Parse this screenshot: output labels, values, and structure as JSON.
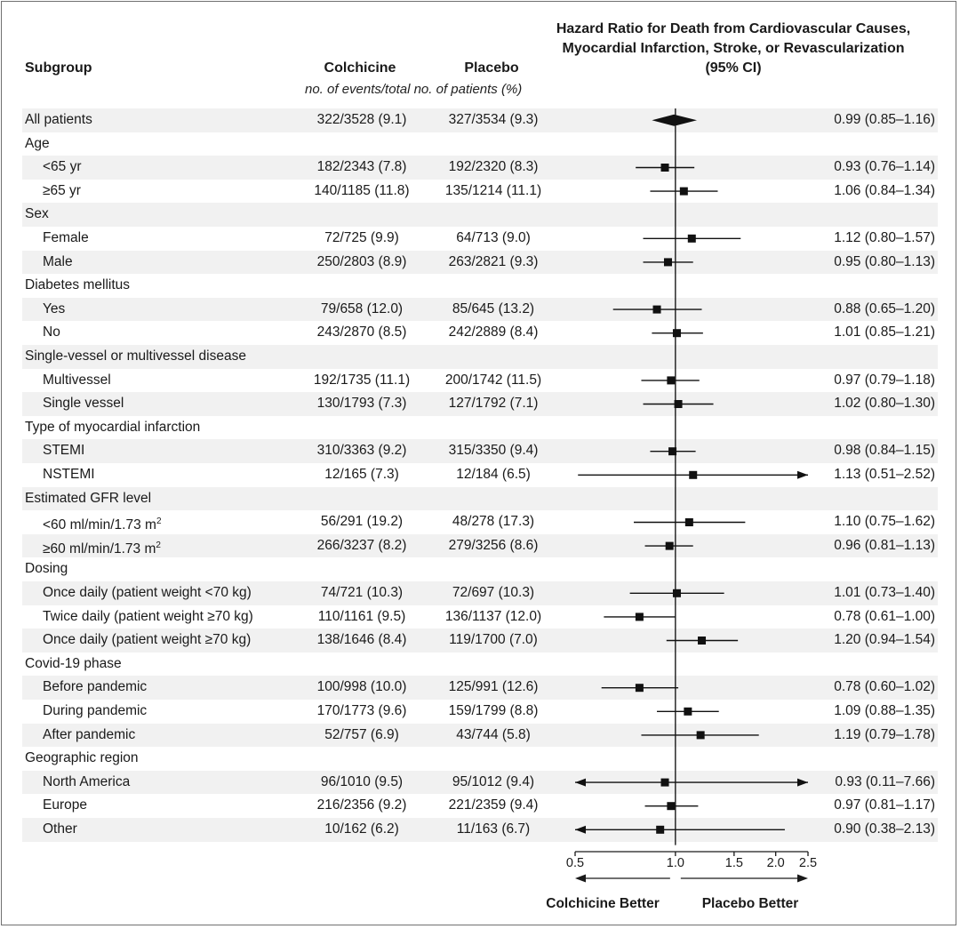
{
  "header": {
    "subgroup": "Subgroup",
    "colchicine": "Colchicine",
    "placebo": "Placebo",
    "units": "no. of events/total no. of patients (%)",
    "plot_title_lines": [
      "Hazard Ratio for Death from Cardiovascular Causes,",
      "Myocardial Infarction, Stroke, or Revascularization",
      "(95% CI)"
    ]
  },
  "chart_data": {
    "type": "forest",
    "x_scale": "log",
    "xlim": [
      0.5,
      2.5
    ],
    "reference_line": 1.0,
    "x_ticks": [
      0.5,
      1.0,
      1.5,
      2.0,
      2.5
    ],
    "x_tick_labels": [
      "0.5",
      "1.0",
      "1.5",
      "2.0",
      "2.5"
    ],
    "left_label": "Colchicine Better",
    "right_label": "Placebo Better",
    "rows": [
      {
        "label": "All patients",
        "kind": "overall",
        "colchicine": "322/3528 (9.1)",
        "placebo": "327/3534 (9.3)",
        "hr_text": "0.99 (0.85–1.16)",
        "hr": 0.99,
        "lo": 0.85,
        "hi": 1.16
      },
      {
        "label": "Age",
        "kind": "group"
      },
      {
        "label": "<65 yr",
        "kind": "item",
        "colchicine": "182/2343 (7.8)",
        "placebo": "192/2320 (8.3)",
        "hr_text": "0.93 (0.76–1.14)",
        "hr": 0.93,
        "lo": 0.76,
        "hi": 1.14
      },
      {
        "label": "≥65 yr",
        "kind": "item",
        "colchicine": "140/1185 (11.8)",
        "placebo": "135/1214 (11.1)",
        "hr_text": "1.06 (0.84–1.34)",
        "hr": 1.06,
        "lo": 0.84,
        "hi": 1.34
      },
      {
        "label": "Sex",
        "kind": "group"
      },
      {
        "label": "Female",
        "kind": "item",
        "colchicine": "72/725 (9.9)",
        "placebo": "64/713 (9.0)",
        "hr_text": "1.12 (0.80–1.57)",
        "hr": 1.12,
        "lo": 0.8,
        "hi": 1.57
      },
      {
        "label": "Male",
        "kind": "item",
        "colchicine": "250/2803 (8.9)",
        "placebo": "263/2821 (9.3)",
        "hr_text": "0.95 (0.80–1.13)",
        "hr": 0.95,
        "lo": 0.8,
        "hi": 1.13
      },
      {
        "label": "Diabetes mellitus",
        "kind": "group"
      },
      {
        "label": "Yes",
        "kind": "item",
        "colchicine": "79/658 (12.0)",
        "placebo": "85/645 (13.2)",
        "hr_text": "0.88 (0.65–1.20)",
        "hr": 0.88,
        "lo": 0.65,
        "hi": 1.2
      },
      {
        "label": "No",
        "kind": "item",
        "colchicine": "243/2870 (8.5)",
        "placebo": "242/2889 (8.4)",
        "hr_text": "1.01 (0.85–1.21)",
        "hr": 1.01,
        "lo": 0.85,
        "hi": 1.21
      },
      {
        "label": "Single-vessel or multivessel disease",
        "kind": "group"
      },
      {
        "label": "Multivessel",
        "kind": "item",
        "colchicine": "192/1735 (11.1)",
        "placebo": "200/1742 (11.5)",
        "hr_text": "0.97 (0.79–1.18)",
        "hr": 0.97,
        "lo": 0.79,
        "hi": 1.18
      },
      {
        "label": "Single vessel",
        "kind": "item",
        "colchicine": "130/1793 (7.3)",
        "placebo": "127/1792 (7.1)",
        "hr_text": "1.02 (0.80–1.30)",
        "hr": 1.02,
        "lo": 0.8,
        "hi": 1.3
      },
      {
        "label": "Type of myocardial infarction",
        "kind": "group"
      },
      {
        "label": "STEMI",
        "kind": "item",
        "colchicine": "310/3363 (9.2)",
        "placebo": "315/3350 (9.4)",
        "hr_text": "0.98 (0.84–1.15)",
        "hr": 0.98,
        "lo": 0.84,
        "hi": 1.15
      },
      {
        "label": "NSTEMI",
        "kind": "item",
        "colchicine": "12/165 (7.3)",
        "placebo": "12/184 (6.5)",
        "hr_text": "1.13 (0.51–2.52)",
        "hr": 1.13,
        "lo": 0.51,
        "hi": 2.52
      },
      {
        "label": "Estimated GFR level",
        "kind": "group"
      },
      {
        "label": "<60 ml/min/1.73 m",
        "sup": "2",
        "kind": "item",
        "colchicine": "56/291 (19.2)",
        "placebo": "48/278 (17.3)",
        "hr_text": "1.10 (0.75–1.62)",
        "hr": 1.1,
        "lo": 0.75,
        "hi": 1.62
      },
      {
        "label": "≥60 ml/min/1.73 m",
        "sup": "2",
        "kind": "item",
        "colchicine": "266/3237 (8.2)",
        "placebo": "279/3256 (8.6)",
        "hr_text": "0.96 (0.81–1.13)",
        "hr": 0.96,
        "lo": 0.81,
        "hi": 1.13
      },
      {
        "label": "Dosing",
        "kind": "group"
      },
      {
        "label": "Once daily (patient weight <70 kg)",
        "kind": "item",
        "colchicine": "74/721 (10.3)",
        "placebo": "72/697 (10.3)",
        "hr_text": "1.01 (0.73–1.40)",
        "hr": 1.01,
        "lo": 0.73,
        "hi": 1.4
      },
      {
        "label": "Twice daily (patient weight ≥70 kg)",
        "kind": "item",
        "colchicine": "110/1161 (9.5)",
        "placebo": "136/1137 (12.0)",
        "hr_text": "0.78 (0.61–1.00)",
        "hr": 0.78,
        "lo": 0.61,
        "hi": 1.0
      },
      {
        "label": "Once daily (patient weight ≥70 kg)",
        "kind": "item",
        "colchicine": "138/1646 (8.4)",
        "placebo": "119/1700 (7.0)",
        "hr_text": "1.20 (0.94–1.54)",
        "hr": 1.2,
        "lo": 0.94,
        "hi": 1.54
      },
      {
        "label": "Covid-19 phase",
        "kind": "group"
      },
      {
        "label": "Before pandemic",
        "kind": "item",
        "colchicine": "100/998 (10.0)",
        "placebo": "125/991 (12.6)",
        "hr_text": "0.78 (0.60–1.02)",
        "hr": 0.78,
        "lo": 0.6,
        "hi": 1.02
      },
      {
        "label": "During pandemic",
        "kind": "item",
        "colchicine": "170/1773 (9.6)",
        "placebo": "159/1799 (8.8)",
        "hr_text": "1.09 (0.88–1.35)",
        "hr": 1.09,
        "lo": 0.88,
        "hi": 1.35
      },
      {
        "label": "After pandemic",
        "kind": "item",
        "colchicine": "52/757 (6.9)",
        "placebo": "43/744 (5.8)",
        "hr_text": "1.19 (0.79–1.78)",
        "hr": 1.19,
        "lo": 0.79,
        "hi": 1.78
      },
      {
        "label": "Geographic region",
        "kind": "group"
      },
      {
        "label": "North America",
        "kind": "item",
        "colchicine": "96/1010 (9.5)",
        "placebo": "95/1012 (9.4)",
        "hr_text": "0.93 (0.11–7.66)",
        "hr": 0.93,
        "lo": 0.11,
        "hi": 7.66
      },
      {
        "label": "Europe",
        "kind": "item",
        "colchicine": "216/2356 (9.2)",
        "placebo": "221/2359 (9.4)",
        "hr_text": "0.97 (0.81–1.17)",
        "hr": 0.97,
        "lo": 0.81,
        "hi": 1.17
      },
      {
        "label": "Other",
        "kind": "item",
        "colchicine": "10/162 (6.2)",
        "placebo": "11/163 (6.7)",
        "hr_text": "0.90 (0.38–2.13)",
        "hr": 0.9,
        "lo": 0.38,
        "hi": 2.13
      }
    ]
  }
}
